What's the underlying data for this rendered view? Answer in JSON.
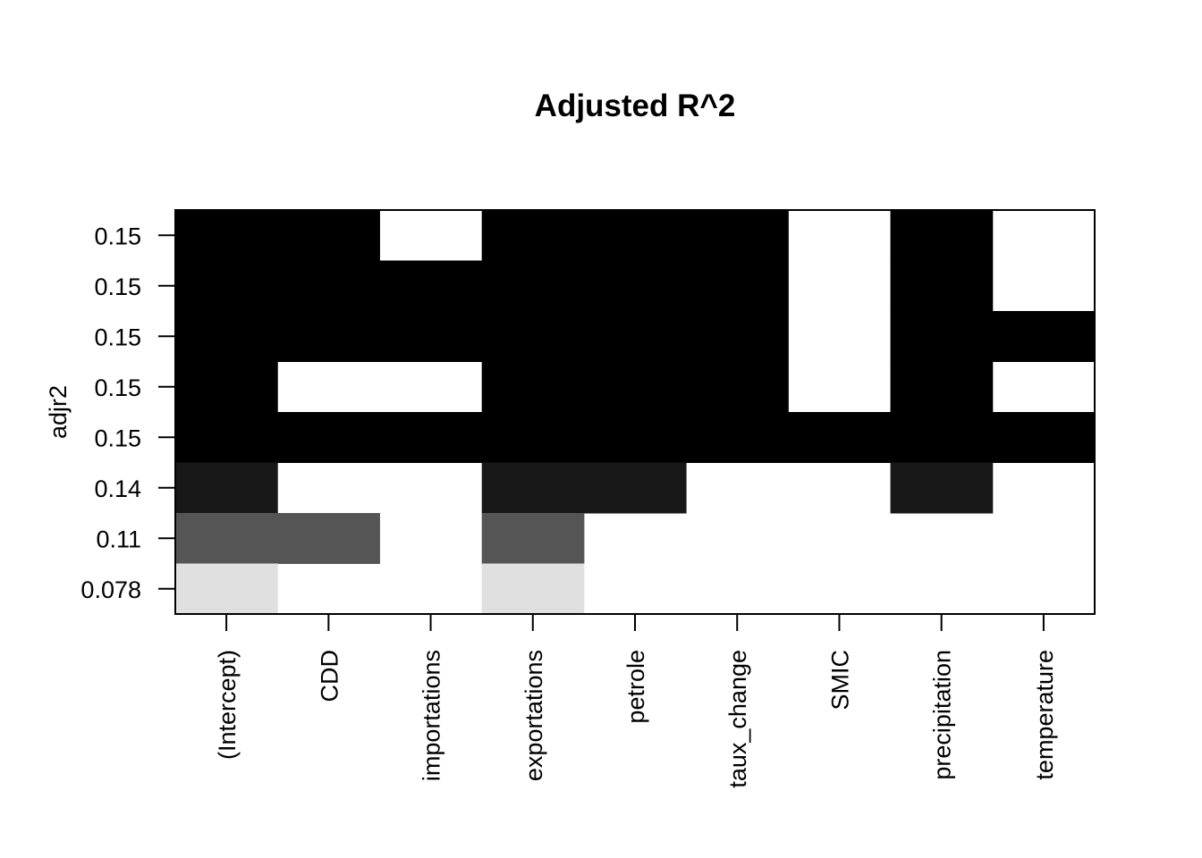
{
  "chart_data": {
    "type": "heatmap",
    "title": "Adjusted R^2",
    "ylabel": "adjr2",
    "xlabel": "",
    "x_categories": [
      "(Intercept)",
      "CDD",
      "importations",
      "exportations",
      "petrole",
      "taux_change",
      "SMIC",
      "precipitation",
      "temperature"
    ],
    "y_tick_labels_top_to_bottom": [
      "0.15",
      "0.15",
      "0.15",
      "0.15",
      "0.15",
      "0.14",
      "0.11",
      "0.078"
    ],
    "rows_top_to_bottom": [
      {
        "adjr2_label": "0.15",
        "shade": "#000000",
        "included": [
          1,
          1,
          0,
          1,
          1,
          1,
          0,
          1,
          0
        ]
      },
      {
        "adjr2_label": "0.15",
        "shade": "#000000",
        "included": [
          1,
          1,
          1,
          1,
          1,
          1,
          0,
          1,
          0
        ]
      },
      {
        "adjr2_label": "0.15",
        "shade": "#000000",
        "included": [
          1,
          1,
          1,
          1,
          1,
          1,
          0,
          1,
          1
        ]
      },
      {
        "adjr2_label": "0.15",
        "shade": "#000000",
        "included": [
          1,
          0,
          0,
          1,
          1,
          1,
          0,
          1,
          0
        ]
      },
      {
        "adjr2_label": "0.15",
        "shade": "#000000",
        "included": [
          1,
          1,
          1,
          1,
          1,
          1,
          1,
          1,
          1
        ]
      },
      {
        "adjr2_label": "0.14",
        "shade": "#181818",
        "included": [
          1,
          0,
          0,
          1,
          1,
          0,
          0,
          1,
          0
        ]
      },
      {
        "adjr2_label": "0.11",
        "shade": "#555555",
        "included": [
          1,
          1,
          0,
          1,
          0,
          0,
          0,
          0,
          0
        ]
      },
      {
        "adjr2_label": "0.078",
        "shade": "#e0e0e0",
        "included": [
          1,
          0,
          0,
          1,
          0,
          0,
          0,
          0,
          0
        ]
      }
    ],
    "colors": {
      "excluded": "#ffffff",
      "border": "#000000"
    }
  }
}
